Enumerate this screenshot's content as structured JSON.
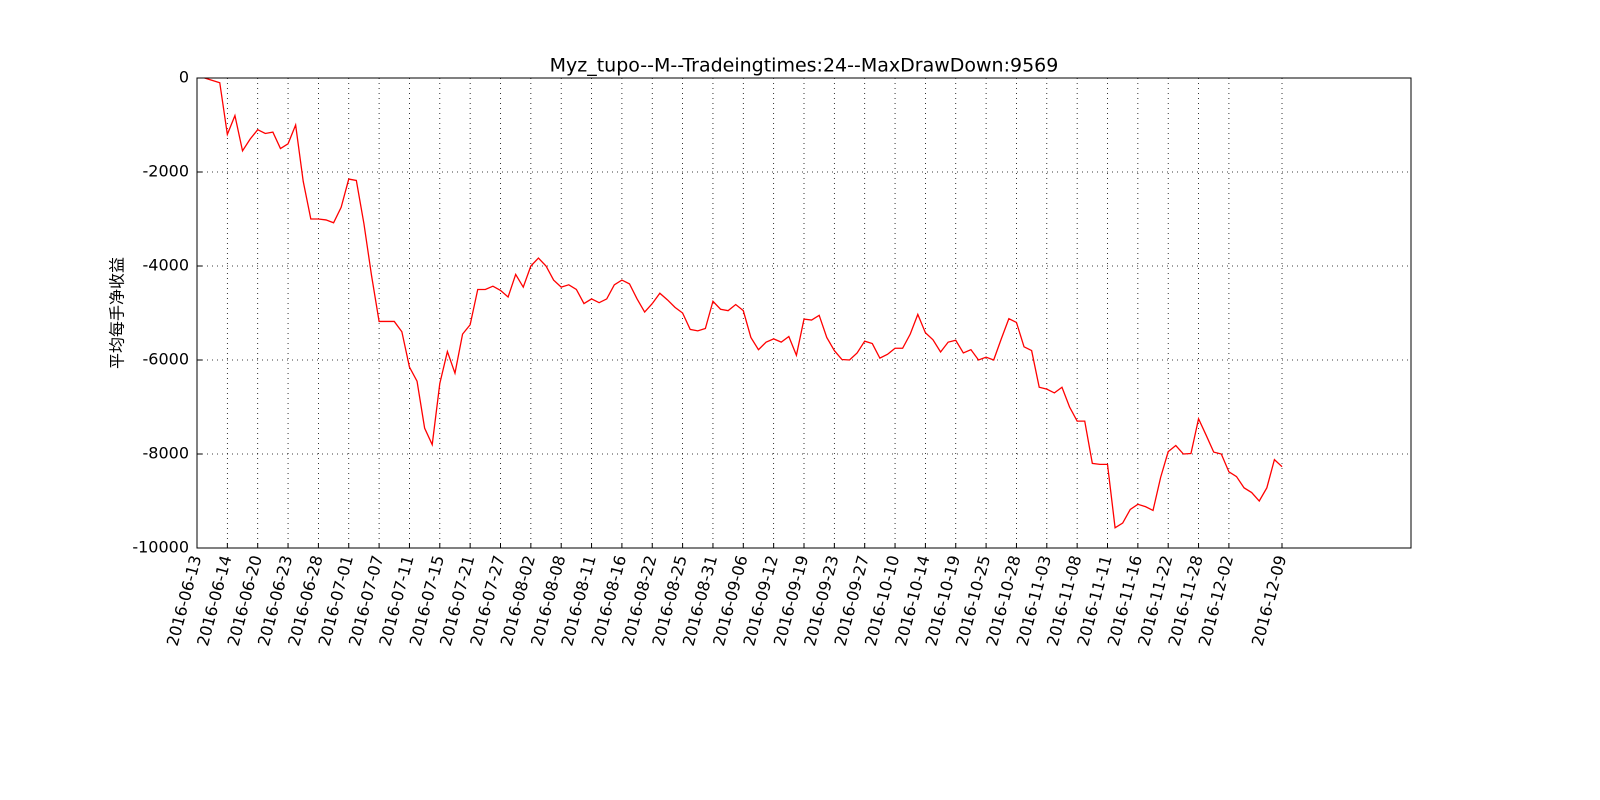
{
  "chart_data": {
    "type": "line",
    "title": "Myz_tupo--M--Tradeingtimes:24--MaxDrawDown:9569",
    "y_label": "平均每手净收益",
    "x": [
      1,
      2,
      3,
      4,
      5,
      6,
      7,
      8,
      9,
      10,
      11,
      12,
      13,
      14,
      15,
      16,
      17,
      18,
      19,
      20,
      21,
      22,
      23,
      24,
      25,
      26,
      27,
      28,
      29,
      30,
      31,
      32,
      33,
      34,
      35,
      36,
      37,
      38,
      39,
      40,
      41,
      42,
      43,
      44,
      45,
      46,
      47,
      48,
      49,
      50,
      51,
      52,
      53,
      54,
      55,
      56,
      57,
      58,
      59,
      60,
      61,
      62,
      63,
      64,
      65,
      66,
      67,
      68,
      69,
      70,
      71,
      72,
      73,
      74,
      75,
      76,
      77,
      78,
      79,
      80,
      81,
      82,
      83,
      84,
      85,
      86,
      87,
      88,
      89,
      90,
      91,
      92,
      93,
      94,
      95,
      96,
      97,
      98,
      99,
      100,
      101,
      102,
      103,
      104,
      105,
      106,
      107,
      108,
      109,
      110,
      111,
      112,
      113,
      114,
      115,
      116,
      117,
      118,
      119,
      120,
      121,
      122,
      123,
      124,
      125,
      126,
      127,
      128,
      129,
      130,
      131,
      132,
      133,
      134,
      135,
      136,
      137,
      138,
      139,
      140,
      141,
      142,
      143
    ],
    "series": [
      {
        "color": "#ff0000",
        "values": [
          0,
          -50,
          -100,
          -1200,
          -800,
          -1550,
          -1300,
          -1100,
          -1180,
          -1150,
          -1500,
          -1400,
          -1000,
          -2200,
          -3000,
          -3000,
          -3020,
          -3080,
          -2750,
          -2150,
          -2180,
          -3100,
          -4200,
          -5180,
          -5180,
          -5180,
          -5400,
          -6150,
          -6450,
          -7450,
          -7800,
          -6500,
          -5820,
          -6280,
          -5450,
          -5250,
          -4500,
          -4500,
          -4430,
          -4520,
          -4660,
          -4180,
          -4450,
          -4000,
          -3830,
          -4000,
          -4300,
          -4450,
          -4400,
          -4500,
          -4800,
          -4700,
          -4780,
          -4700,
          -4400,
          -4300,
          -4380,
          -4700,
          -4980,
          -4800,
          -4580,
          -4720,
          -4880,
          -5000,
          -5350,
          -5380,
          -5330,
          -4750,
          -4920,
          -4950,
          -4820,
          -4950,
          -5520,
          -5780,
          -5620,
          -5550,
          -5620,
          -5500,
          -5900,
          -5130,
          -5150,
          -5050,
          -5520,
          -5800,
          -5990,
          -6000,
          -5850,
          -5600,
          -5650,
          -5960,
          -5880,
          -5750,
          -5750,
          -5450,
          -5030,
          -5420,
          -5570,
          -5830,
          -5620,
          -5580,
          -5850,
          -5780,
          -6000,
          -5940,
          -6000,
          -5550,
          -5120,
          -5200,
          -5720,
          -5800,
          -6580,
          -6620,
          -6700,
          -6580,
          -7000,
          -7300,
          -7300,
          -8200,
          -8220,
          -8220,
          -9570,
          -9470,
          -9180,
          -9070,
          -9120,
          -9200,
          -8500,
          -7950,
          -7820,
          -8000,
          -7990,
          -7250,
          -7600,
          -7960,
          -8000,
          -8380,
          -8480,
          -8720,
          -8820,
          -9000,
          -8720,
          -8120,
          -8270
        ]
      }
    ],
    "xlim": [
      0,
      160
    ],
    "xticks": [
      {
        "value": 0,
        "label": "2016-06-13"
      },
      {
        "value": 4,
        "label": "2016-06-14"
      },
      {
        "value": 8,
        "label": "2016-06-20"
      },
      {
        "value": 12,
        "label": "2016-06-23"
      },
      {
        "value": 16,
        "label": "2016-06-28"
      },
      {
        "value": 20,
        "label": "2016-07-01"
      },
      {
        "value": 24,
        "label": "2016-07-07"
      },
      {
        "value": 28,
        "label": "2016-07-11"
      },
      {
        "value": 32,
        "label": "2016-07-15"
      },
      {
        "value": 36,
        "label": "2016-07-21"
      },
      {
        "value": 40,
        "label": "2016-07-27"
      },
      {
        "value": 44,
        "label": "2016-08-02"
      },
      {
        "value": 48,
        "label": "2016-08-08"
      },
      {
        "value": 52,
        "label": "2016-08-11"
      },
      {
        "value": 56,
        "label": "2016-08-16"
      },
      {
        "value": 60,
        "label": "2016-08-22"
      },
      {
        "value": 64,
        "label": "2016-08-25"
      },
      {
        "value": 68,
        "label": "2016-08-31"
      },
      {
        "value": 72,
        "label": "2016-09-06"
      },
      {
        "value": 76,
        "label": "2016-09-12"
      },
      {
        "value": 80,
        "label": "2016-09-19"
      },
      {
        "value": 84,
        "label": "2016-09-23"
      },
      {
        "value": 88,
        "label": "2016-09-27"
      },
      {
        "value": 92,
        "label": "2016-10-10"
      },
      {
        "value": 96,
        "label": "2016-10-14"
      },
      {
        "value": 100,
        "label": "2016-10-19"
      },
      {
        "value": 104,
        "label": "2016-10-25"
      },
      {
        "value": 108,
        "label": "2016-10-28"
      },
      {
        "value": 112,
        "label": "2016-11-03"
      },
      {
        "value": 116,
        "label": "2016-11-08"
      },
      {
        "value": 120,
        "label": "2016-11-11"
      },
      {
        "value": 124,
        "label": "2016-11-16"
      },
      {
        "value": 128,
        "label": "2016-11-22"
      },
      {
        "value": 132,
        "label": "2016-11-28"
      },
      {
        "value": 136,
        "label": "2016-12-02"
      },
      {
        "value": 143,
        "label": "2016-12-09"
      }
    ],
    "ylim": [
      -10000,
      0
    ],
    "yticks": [
      0,
      -2000,
      -4000,
      -6000,
      -8000,
      -10000
    ],
    "grid": true
  }
}
